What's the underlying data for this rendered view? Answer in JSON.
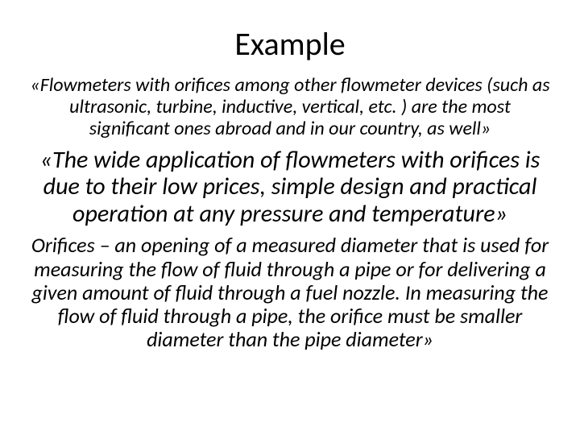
{
  "title": "Example",
  "paragraph1": "«Flowmeters with orifices among other flowmeter devices (such as ultrasonic, turbine, inductive, vertical, etc. ) are the most significant ones abroad and in our country, as well»",
  "paragraph2": "«The wide application of flowmeters with orifices is due to their low prices, simple design and practical operation at any pressure and temperature»",
  "paragraph3": "Orifices – an opening of a measured diameter that is used for measuring the flow of fluid through a pipe or for delivering a given amount of fluid through a fuel nozzle. In measuring the flow of fluid through a pipe, the orifice must be smaller diameter than the pipe diameter»",
  "styles": {
    "background_color": "#ffffff",
    "text_color": "#000000",
    "font_family": "Calibri",
    "title_fontsize": 40,
    "title_fontweight": 400,
    "para1_fontsize": 24,
    "para2_fontsize": 30,
    "para3_fontsize": 26,
    "italic": true,
    "text_align": "center",
    "line_height": 1.12,
    "slide_width": 720,
    "slide_height": 540
  }
}
